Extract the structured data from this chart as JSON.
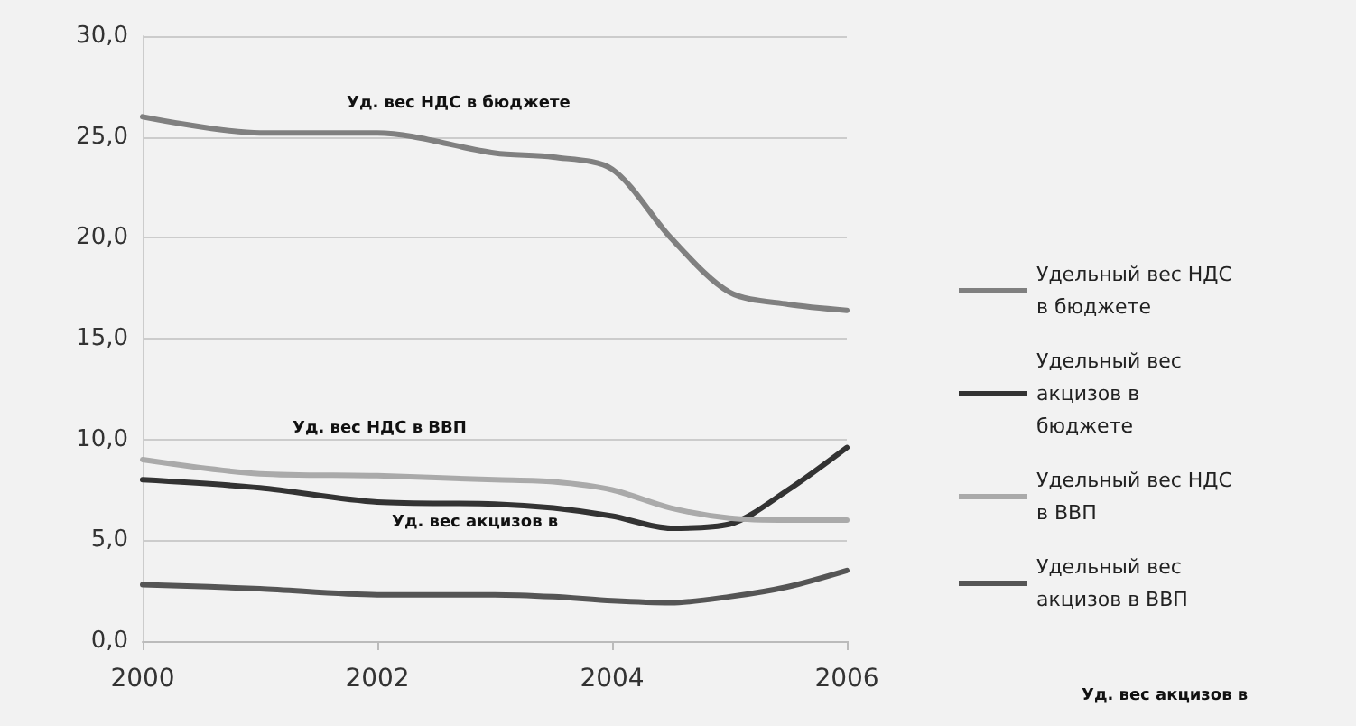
{
  "chart_data": {
    "type": "line",
    "x": [
      2000,
      2001,
      2002,
      2003,
      2003.5,
      2004,
      2004.5,
      2005,
      2005.5,
      2006
    ],
    "series": [
      {
        "name": "Удельный вес НДС в бюджете",
        "color": "#808080",
        "values": [
          26.0,
          25.2,
          25.2,
          24.2,
          24.0,
          23.4,
          20.0,
          17.3,
          16.7,
          16.4
        ]
      },
      {
        "name": "Удельный вес акцизов в бюджете",
        "color": "#333333",
        "values": [
          8.0,
          7.6,
          6.9,
          6.8,
          6.6,
          6.2,
          5.6,
          5.8,
          7.5,
          9.6
        ]
      },
      {
        "name": "Удельный вес НДС в ВВП",
        "color": "#aaaaaa",
        "values": [
          9.0,
          8.3,
          8.2,
          8.0,
          7.9,
          7.5,
          6.6,
          6.1,
          6.0,
          6.0
        ]
      },
      {
        "name": "Удельный вес акцизов в ВВП",
        "color": "#555555",
        "values": [
          2.8,
          2.6,
          2.3,
          2.3,
          2.2,
          2.0,
          1.9,
          2.2,
          2.7,
          3.5
        ]
      }
    ],
    "xlim": [
      2000,
      2006
    ],
    "xticks": [
      2000,
      2002,
      2004,
      2006
    ],
    "ylim": [
      0,
      30
    ],
    "yticks": [
      {
        "value": 0,
        "label": "0,0"
      },
      {
        "value": 5,
        "label": "5,0"
      },
      {
        "value": 10,
        "label": "10,0"
      },
      {
        "value": 15,
        "label": "15,0"
      },
      {
        "value": 20,
        "label": "20,0"
      },
      {
        "value": 25,
        "label": "25,0"
      },
      {
        "value": 30,
        "label": "30,0"
      }
    ],
    "annotations": [
      "Уд. вес НДС в бюджете",
      "Уд. вес НДС в ВВП",
      "Уд. вес акцизов в",
      "Уд. вес акцизов в"
    ],
    "grid": "y",
    "legend": "right",
    "marker": "none",
    "line_style": "solid"
  }
}
